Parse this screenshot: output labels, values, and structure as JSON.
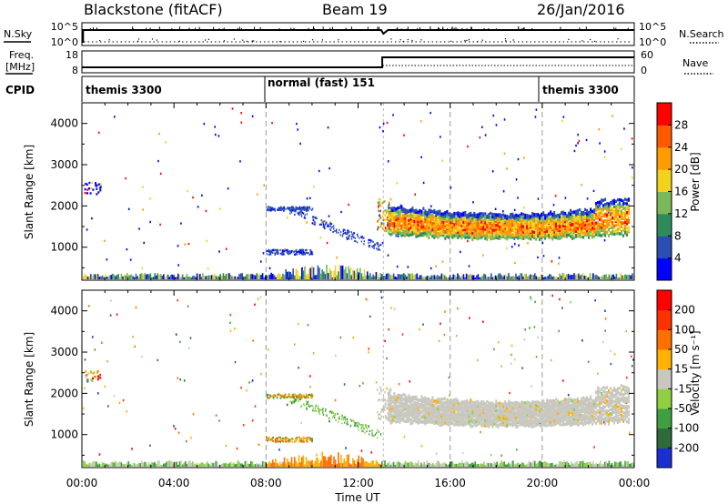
{
  "header": {
    "station": "Blackstone (fitACF)",
    "beam": "Beam 19",
    "date": "26/Jan/2016"
  },
  "sky_panel": {
    "left_label": "N.Sky",
    "left_ticks": [
      "10^5",
      "10^0"
    ],
    "right_ticks": [
      "10^5",
      "10^0"
    ],
    "right_label": "N.Search"
  },
  "freq_panel": {
    "left_label_1": "Freq.",
    "left_label_2": "[MHz]",
    "left_ticks": [
      "18",
      "8"
    ],
    "right_ticks": [
      "60",
      "0"
    ],
    "right_label": "Nave"
  },
  "cpid_panel": {
    "label": "CPID",
    "segments": [
      {
        "name": "themis 3300",
        "start_hour": 0,
        "end_hour": 8
      },
      {
        "name": "normal (fast) 151",
        "start_hour": 8,
        "end_hour": 20
      },
      {
        "name": "themis 3300",
        "start_hour": 20,
        "end_hour": 24
      }
    ]
  },
  "chart_data": [
    {
      "type": "heatmap",
      "name": "power",
      "ylabel": "Slant Range [km]",
      "xlabel": "",
      "xlim": [
        0,
        24
      ],
      "ylim": [
        200,
        4500
      ],
      "yticks": [
        "1000",
        "2000",
        "3000",
        "4000"
      ],
      "colorbar_label": "Power [dB]",
      "colorbar_ticks": [
        "4",
        "8",
        "12",
        "16",
        "20",
        "24",
        "28"
      ],
      "colorbar_colors": [
        "#0000ff",
        "#2b4fb0",
        "#2f8c5a",
        "#7ab85a",
        "#f2d21c",
        "#ff9a00",
        "#ff5a00",
        "#ff0000"
      ],
      "scatter_band": {
        "start_hour": 13.3,
        "end_hour": 23.8,
        "range_low_km": 1250,
        "range_high_km": 1900
      }
    },
    {
      "type": "heatmap",
      "name": "velocity",
      "ylabel": "Slant Range [km]",
      "xlabel": "Time UT",
      "xlim": [
        0,
        24
      ],
      "ylim": [
        200,
        4500
      ],
      "xticks": [
        "00:00",
        "04:00",
        "08:00",
        "12:00",
        "16:00",
        "20:00",
        "00:00"
      ],
      "yticks": [
        "1000",
        "2000",
        "3000",
        "4000"
      ],
      "colorbar_label": "Velocity [m s⁻¹]",
      "colorbar_ticks": [
        "200",
        "100",
        "50",
        "15",
        "-15",
        "-50",
        "-100",
        "-200"
      ],
      "colorbar_colors": [
        "#1a2fd0",
        "#2e6a3a",
        "#40a040",
        "#8fd040",
        "#c8c8c0",
        "#ffb000",
        "#ff7000",
        "#ff3000",
        "#ff0000"
      ],
      "scatter_band": {
        "start_hour": 13.3,
        "end_hour": 23.8,
        "range_low_km": 1250,
        "range_high_km": 1900
      }
    }
  ]
}
